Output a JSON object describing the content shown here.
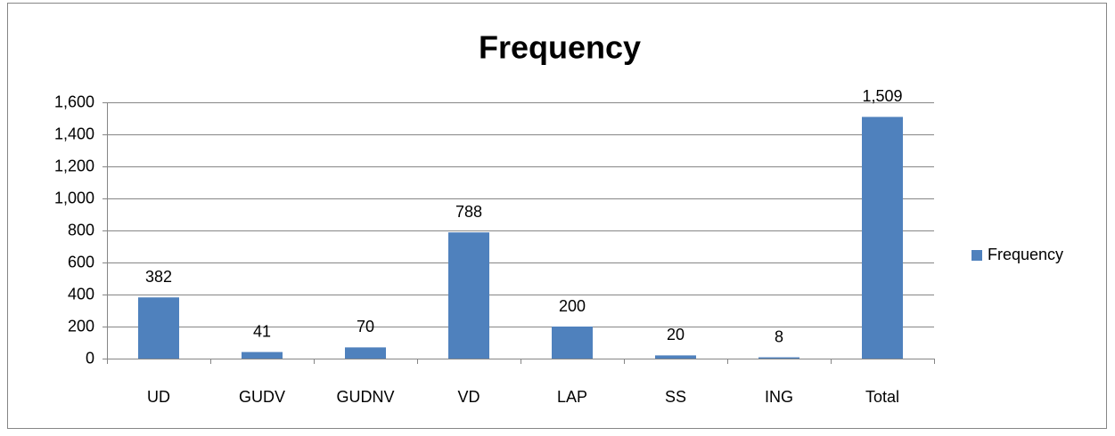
{
  "chart_data": {
    "type": "bar",
    "title": "Frequency",
    "categories": [
      "UD",
      "GUDV",
      "GUDNV",
      "VD",
      "LAP",
      "SS",
      "ING",
      "Total"
    ],
    "series": [
      {
        "name": "Frequency",
        "color": "#4f81bd",
        "values": [
          382,
          41,
          70,
          788,
          200,
          20,
          8,
          1509
        ],
        "value_labels": [
          "382",
          "41",
          "70",
          "788",
          "200",
          "20",
          "8",
          "1,509"
        ]
      }
    ],
    "ylim": [
      0,
      1600
    ],
    "yticks": [
      0,
      200,
      400,
      600,
      800,
      {
        "value": 1000,
        "label": "1,000"
      },
      {
        "value": 1200,
        "label": "1,200"
      },
      {
        "value": 1400,
        "label": "1,400"
      },
      {
        "value": 1600,
        "label": "1,600"
      }
    ],
    "grid": true,
    "legend": "right"
  }
}
